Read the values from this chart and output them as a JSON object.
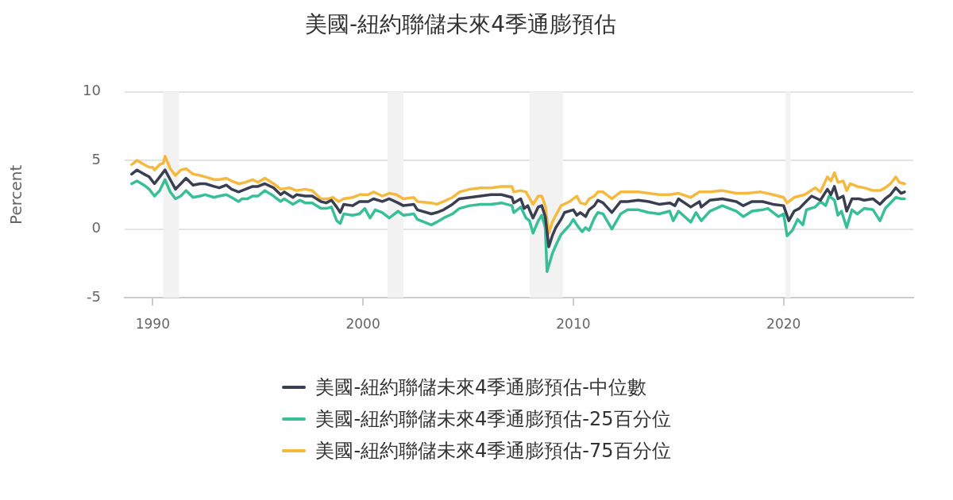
{
  "chart_data": {
    "type": "line",
    "title": "美國-紐約聯儲未來4季通膨預估",
    "ylabel": "Percent",
    "xlim": [
      "1988-09",
      "2026-03"
    ],
    "xticks": [
      "1990",
      "2000",
      "2010",
      "2020"
    ],
    "ylim": [
      -5,
      10
    ],
    "yticks": [
      -5,
      0,
      5,
      10
    ],
    "grid": "y",
    "legend": "bottom",
    "bands": [
      {
        "axis": "x",
        "from": "1990-07",
        "to": "1991-04",
        "color": "#f2f2f2"
      },
      {
        "axis": "x",
        "from": "2001-03",
        "to": "2001-12",
        "color": "#f2f2f2"
      },
      {
        "axis": "x",
        "from": "2007-12",
        "to": "2009-07",
        "color": "#f2f2f2"
      },
      {
        "axis": "x",
        "from": "2020-02",
        "to": "2020-05",
        "color": "#f2f2f2"
      }
    ],
    "series": [
      {
        "name": "美國-紐約聯儲未來4季通膨預估-中位數",
        "color": "#393e50",
        "x": [
          "1989-01",
          "1989-04",
          "1989-08",
          "1989-11",
          "1990-02",
          "1990-05",
          "1990-08",
          "1990-11",
          "1991-02",
          "1991-05",
          "1991-08",
          "1991-12",
          "1992-04",
          "1992-07",
          "1992-12",
          "1993-03",
          "1993-07",
          "1993-10",
          "1994-02",
          "1994-06",
          "1994-10",
          "1995-01",
          "1995-05",
          "1995-10",
          "1996-02",
          "1996-04",
          "1996-09",
          "1996-11",
          "1997-04",
          "1997-08",
          "1998-01",
          "1998-04",
          "1998-07",
          "1998-10",
          "1998-12",
          "1999-02",
          "1999-07",
          "1999-11",
          "2000-04",
          "2000-07",
          "2000-12",
          "2001-04",
          "2001-09",
          "2001-12",
          "2002-06",
          "2002-08",
          "2003-04",
          "2003-07",
          "2003-11",
          "2004-04",
          "2004-08",
          "2005-02",
          "2005-08",
          "2006-02",
          "2006-08",
          "2007-02",
          "2007-03",
          "2007-07",
          "2007-09",
          "2007-11",
          "2008-02",
          "2008-05",
          "2008-07",
          "2008-09",
          "2008-11",
          "2009-01",
          "2009-03",
          "2009-06",
          "2009-08",
          "2010-01",
          "2010-03",
          "2010-05",
          "2010-08",
          "2010-10",
          "2011-01",
          "2011-03",
          "2011-06",
          "2011-11",
          "2012-04",
          "2012-08",
          "2013-02",
          "2013-08",
          "2014-02",
          "2014-08",
          "2014-11",
          "2015-01",
          "2015-08",
          "2016-01",
          "2016-02",
          "2016-07",
          "2017-02",
          "2017-10",
          "2018-02",
          "2018-07",
          "2019-01",
          "2019-07",
          "2020-01",
          "2020-04",
          "2020-07",
          "2020-10",
          "2021-01",
          "2021-05",
          "2021-10",
          "2022-02",
          "2022-04",
          "2022-06",
          "2022-08",
          "2022-11",
          "2023-01",
          "2023-04",
          "2023-08",
          "2023-11",
          "2024-04",
          "2024-08",
          "2024-11",
          "2025-02",
          "2025-05",
          "2025-08",
          "2025-10"
        ],
        "values": [
          4.0,
          4.3,
          4.0,
          3.8,
          3.3,
          3.8,
          4.3,
          3.6,
          2.9,
          3.3,
          3.7,
          3.2,
          3.3,
          3.3,
          3.1,
          3.0,
          3.2,
          2.9,
          2.7,
          2.9,
          3.1,
          3.1,
          3.3,
          3.0,
          2.5,
          2.7,
          2.3,
          2.5,
          2.4,
          2.4,
          2.0,
          1.9,
          2.1,
          1.6,
          1.2,
          1.8,
          1.7,
          2.0,
          2.0,
          2.2,
          2.0,
          2.2,
          1.9,
          1.7,
          1.8,
          1.4,
          1.1,
          1.2,
          1.4,
          1.8,
          2.2,
          2.3,
          2.4,
          2.5,
          2.5,
          2.3,
          1.9,
          2.2,
          1.5,
          1.7,
          0.8,
          1.6,
          1.7,
          0.9,
          -1.3,
          -0.5,
          0.1,
          0.7,
          1.2,
          1.4,
          1.0,
          1.2,
          0.9,
          1.4,
          1.7,
          2.1,
          1.9,
          1.2,
          2.0,
          2.0,
          2.1,
          2.0,
          1.8,
          1.9,
          1.7,
          2.2,
          1.6,
          2.0,
          1.6,
          2.1,
          2.2,
          2.0,
          1.7,
          2.0,
          2.0,
          1.8,
          1.7,
          0.6,
          1.3,
          1.5,
          1.9,
          2.4,
          2.1,
          2.9,
          2.5,
          3.1,
          2.2,
          2.4,
          1.3,
          2.2,
          2.2,
          2.1,
          2.2,
          1.8,
          2.2,
          2.5,
          3.0,
          2.6,
          2.7
        ]
      },
      {
        "name": "美國-紐約聯儲未來4季通膨預估-25百分位",
        "color": "#38bf98",
        "x": [
          "1989-01",
          "1989-04",
          "1989-08",
          "1989-11",
          "1990-02",
          "1990-05",
          "1990-08",
          "1990-11",
          "1991-02",
          "1991-05",
          "1991-08",
          "1991-12",
          "1992-04",
          "1992-07",
          "1992-12",
          "1993-03",
          "1993-07",
          "1993-10",
          "1994-02",
          "1994-04",
          "1994-07",
          "1994-10",
          "1995-01",
          "1995-05",
          "1995-10",
          "1996-02",
          "1996-04",
          "1996-09",
          "1997-01",
          "1997-04",
          "1997-08",
          "1998-01",
          "1998-04",
          "1998-07",
          "1998-10",
          "1998-12",
          "1999-02",
          "1999-07",
          "1999-11",
          "2000-02",
          "2000-05",
          "2000-08",
          "2000-12",
          "2001-04",
          "2001-09",
          "2001-12",
          "2002-06",
          "2002-08",
          "2003-04",
          "2003-07",
          "2003-11",
          "2004-04",
          "2004-08",
          "2005-02",
          "2005-08",
          "2006-02",
          "2006-08",
          "2007-02",
          "2007-03",
          "2007-07",
          "2007-10",
          "2007-12",
          "2008-02",
          "2008-05",
          "2008-07",
          "2008-09",
          "2008-10",
          "2009-01",
          "2009-03",
          "2009-06",
          "2009-11",
          "2010-01",
          "2010-03",
          "2010-06",
          "2010-08",
          "2010-10",
          "2011-01",
          "2011-03",
          "2011-06",
          "2011-11",
          "2012-04",
          "2012-08",
          "2013-02",
          "2013-08",
          "2014-02",
          "2014-08",
          "2014-10",
          "2015-01",
          "2015-08",
          "2015-11",
          "2016-02",
          "2016-07",
          "2017-02",
          "2017-10",
          "2018-02",
          "2018-07",
          "2019-01",
          "2019-04",
          "2019-10",
          "2020-01",
          "2020-03",
          "2020-06",
          "2020-09",
          "2020-12",
          "2021-02",
          "2021-07",
          "2021-10",
          "2022-01",
          "2022-03",
          "2022-06",
          "2022-08",
          "2022-10",
          "2023-01",
          "2023-04",
          "2023-07",
          "2023-11",
          "2024-04",
          "2024-08",
          "2024-11",
          "2025-02",
          "2025-05",
          "2025-08",
          "2025-10"
        ],
        "values": [
          3.3,
          3.5,
          3.2,
          2.9,
          2.4,
          2.8,
          3.6,
          2.7,
          2.2,
          2.4,
          2.8,
          2.3,
          2.4,
          2.5,
          2.3,
          2.4,
          2.5,
          2.3,
          2.0,
          2.2,
          2.2,
          2.4,
          2.4,
          2.8,
          2.4,
          2.0,
          2.2,
          1.8,
          2.1,
          1.9,
          1.9,
          1.5,
          1.5,
          1.6,
          0.6,
          0.4,
          1.1,
          1.0,
          1.1,
          1.5,
          0.8,
          1.4,
          1.2,
          0.8,
          1.3,
          1.0,
          1.1,
          0.7,
          0.3,
          0.5,
          0.8,
          1.1,
          1.5,
          1.7,
          1.8,
          1.8,
          1.9,
          1.7,
          1.2,
          1.6,
          0.8,
          0.6,
          -0.3,
          0.6,
          1.0,
          0.1,
          -3.1,
          -1.8,
          -1.2,
          -0.4,
          0.3,
          0.7,
          0.3,
          -0.2,
          0.1,
          -0.1,
          0.8,
          1.2,
          1.1,
          0.0,
          1.1,
          1.4,
          1.4,
          1.2,
          1.1,
          1.3,
          0.6,
          1.3,
          0.5,
          1.2,
          0.6,
          1.3,
          1.7,
          1.3,
          0.9,
          1.3,
          1.4,
          1.5,
          0.9,
          1.1,
          -0.5,
          -0.1,
          0.7,
          0.3,
          1.4,
          1.6,
          2.0,
          1.7,
          2.4,
          2.1,
          1.0,
          1.3,
          0.1,
          1.4,
          1.1,
          1.5,
          1.4,
          0.6,
          1.5,
          1.9,
          2.3,
          2.2,
          2.2
        ]
      },
      {
        "name": "美國-紐約聯儲未來4季通膨預估-75百分位",
        "color": "#f6b93f",
        "x": [
          "1989-01",
          "1989-04",
          "1989-08",
          "1989-11",
          "1990-01",
          "1990-02",
          "1990-05",
          "1990-07",
          "1990-08",
          "1990-11",
          "1991-02",
          "1991-05",
          "1991-08",
          "1991-12",
          "1992-04",
          "1992-07",
          "1992-12",
          "1993-03",
          "1993-07",
          "1993-10",
          "1994-02",
          "1994-06",
          "1994-10",
          "1995-01",
          "1995-05",
          "1995-10",
          "1996-02",
          "1996-07",
          "1996-11",
          "1997-04",
          "1997-08",
          "1998-01",
          "1998-05",
          "1998-08",
          "1998-11",
          "1999-02",
          "1999-07",
          "1999-11",
          "2000-04",
          "2000-07",
          "2000-12",
          "2001-04",
          "2001-08",
          "2001-12",
          "2002-06",
          "2002-08",
          "2003-04",
          "2003-07",
          "2003-11",
          "2004-04",
          "2004-08",
          "2005-02",
          "2005-08",
          "2006-02",
          "2006-08",
          "2007-02",
          "2007-03",
          "2007-07",
          "2007-10",
          "2008-02",
          "2008-05",
          "2008-07",
          "2008-09",
          "2008-11",
          "2009-01",
          "2009-03",
          "2009-06",
          "2009-11",
          "2010-01",
          "2010-03",
          "2010-05",
          "2010-08",
          "2010-10",
          "2011-01",
          "2011-03",
          "2011-06",
          "2011-11",
          "2012-04",
          "2012-08",
          "2013-02",
          "2013-08",
          "2014-02",
          "2014-08",
          "2015-01",
          "2015-08",
          "2016-01",
          "2016-07",
          "2017-02",
          "2017-10",
          "2018-04",
          "2018-12",
          "2019-07",
          "2020-01",
          "2020-03",
          "2020-07",
          "2021-01",
          "2021-07",
          "2021-10",
          "2022-02",
          "2022-04",
          "2022-06",
          "2022-08",
          "2022-11",
          "2023-01",
          "2023-03",
          "2023-07",
          "2023-11",
          "2024-04",
          "2024-08",
          "2024-11",
          "2025-02",
          "2025-05",
          "2025-07",
          "2025-10"
        ],
        "values": [
          4.7,
          5.0,
          4.7,
          4.5,
          4.5,
          4.3,
          4.7,
          4.8,
          5.3,
          4.4,
          3.9,
          4.3,
          4.4,
          4.0,
          3.9,
          3.8,
          3.6,
          3.6,
          3.7,
          3.5,
          3.3,
          3.4,
          3.6,
          3.4,
          3.7,
          3.3,
          2.9,
          3.0,
          2.8,
          2.9,
          2.8,
          2.2,
          2.2,
          2.3,
          2.0,
          2.2,
          2.3,
          2.5,
          2.5,
          2.7,
          2.4,
          2.6,
          2.5,
          2.2,
          2.3,
          2.0,
          1.9,
          1.8,
          2.0,
          2.3,
          2.7,
          2.9,
          3.0,
          3.0,
          3.1,
          3.1,
          2.7,
          2.8,
          2.7,
          1.8,
          2.4,
          2.4,
          1.7,
          -0.3,
          0.5,
          1.0,
          1.7,
          2.0,
          2.2,
          2.4,
          1.9,
          1.8,
          2.2,
          2.4,
          2.7,
          2.7,
          2.2,
          2.7,
          2.7,
          2.7,
          2.6,
          2.5,
          2.5,
          2.6,
          2.3,
          2.7,
          2.7,
          2.8,
          2.6,
          2.6,
          2.7,
          2.5,
          2.3,
          1.9,
          2.3,
          2.5,
          3.0,
          2.7,
          3.8,
          3.5,
          4.1,
          3.4,
          3.5,
          2.8,
          3.3,
          3.1,
          3.0,
          2.8,
          2.8,
          3.0,
          3.3,
          3.8,
          3.4,
          3.3
        ]
      }
    ]
  }
}
